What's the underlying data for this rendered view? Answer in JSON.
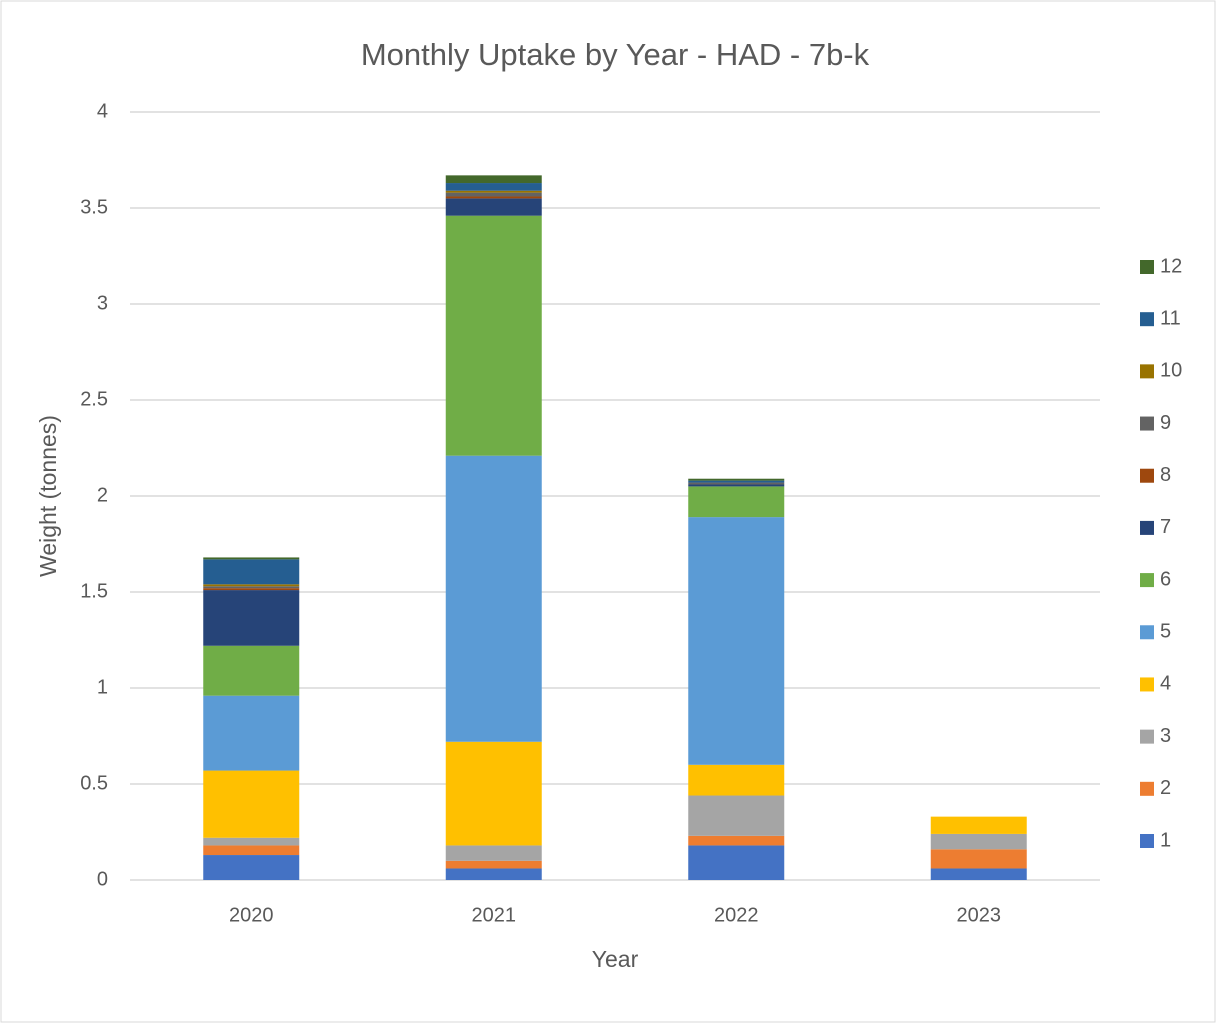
{
  "chart_data": {
    "type": "stacked-bar",
    "title": "Monthly Uptake by Year - HAD - 7b-k",
    "x_label": "Year",
    "y_label": "Weight (tonnes)",
    "categories": [
      "2020",
      "2021",
      "2022",
      "2023"
    ],
    "series": [
      {
        "name": "1",
        "color": "#4472c4",
        "values": [
          0.13,
          0.06,
          0.18,
          0.06
        ]
      },
      {
        "name": "2",
        "color": "#ed7d31",
        "values": [
          0.05,
          0.04,
          0.05,
          0.1
        ]
      },
      {
        "name": "3",
        "color": "#a5a5a5",
        "values": [
          0.04,
          0.08,
          0.21,
          0.08
        ]
      },
      {
        "name": "4",
        "color": "#ffc000",
        "values": [
          0.35,
          0.54,
          0.16,
          0.09
        ]
      },
      {
        "name": "5",
        "color": "#5b9bd5",
        "values": [
          0.39,
          1.49,
          1.29,
          0
        ]
      },
      {
        "name": "6",
        "color": "#70ad47",
        "values": [
          0.26,
          1.25,
          0.16,
          0
        ]
      },
      {
        "name": "7",
        "color": "#264478",
        "values": [
          0.29,
          0.09,
          0.01,
          0
        ]
      },
      {
        "name": "8",
        "color": "#9e480e",
        "values": [
          0.01,
          0.01,
          0,
          0
        ]
      },
      {
        "name": "9",
        "color": "#636363",
        "values": [
          0.01,
          0.02,
          0.01,
          0
        ]
      },
      {
        "name": "10",
        "color": "#997300",
        "values": [
          0.01,
          0.01,
          0,
          0
        ]
      },
      {
        "name": "11",
        "color": "#255e91",
        "values": [
          0.13,
          0.04,
          0.01,
          0
        ]
      },
      {
        "name": "12",
        "color": "#43682b",
        "values": [
          0.01,
          0.04,
          0.01,
          0
        ]
      }
    ],
    "ylim": [
      0,
      4
    ],
    "yticks": [
      0,
      0.5,
      1,
      1.5,
      2,
      2.5,
      3,
      3.5,
      4
    ],
    "grid": true,
    "legend": "right"
  }
}
